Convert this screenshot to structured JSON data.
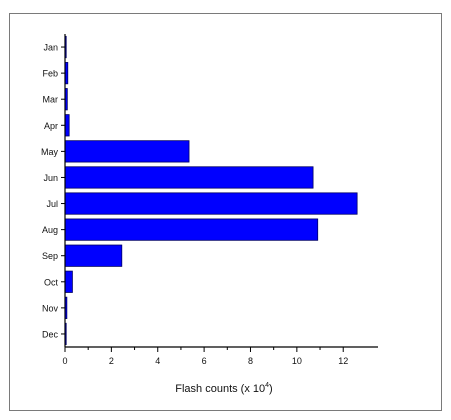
{
  "chart_data": {
    "type": "bar",
    "orientation": "horizontal",
    "categories": [
      "Jan",
      "Feb",
      "Mar",
      "Apr",
      "May",
      "Jun",
      "Jul",
      "Aug",
      "Sep",
      "Oct",
      "Nov",
      "Dec"
    ],
    "values": [
      0.02,
      0.12,
      0.1,
      0.18,
      5.35,
      10.7,
      12.6,
      10.9,
      2.45,
      0.32,
      0.08,
      0.02
    ],
    "xlabel_main": "Flash counts (x 10",
    "xlabel_sup": "4",
    "xlabel_close": ")",
    "xlim": [
      0,
      13.5
    ],
    "xticks": [
      0,
      2,
      4,
      6,
      8,
      10,
      12
    ],
    "grid": false,
    "colors": {
      "bar_fill": "#0000ff",
      "bar_edge": "#000066",
      "frame_border": "#7a7a7a",
      "axis": "#000000"
    }
  }
}
